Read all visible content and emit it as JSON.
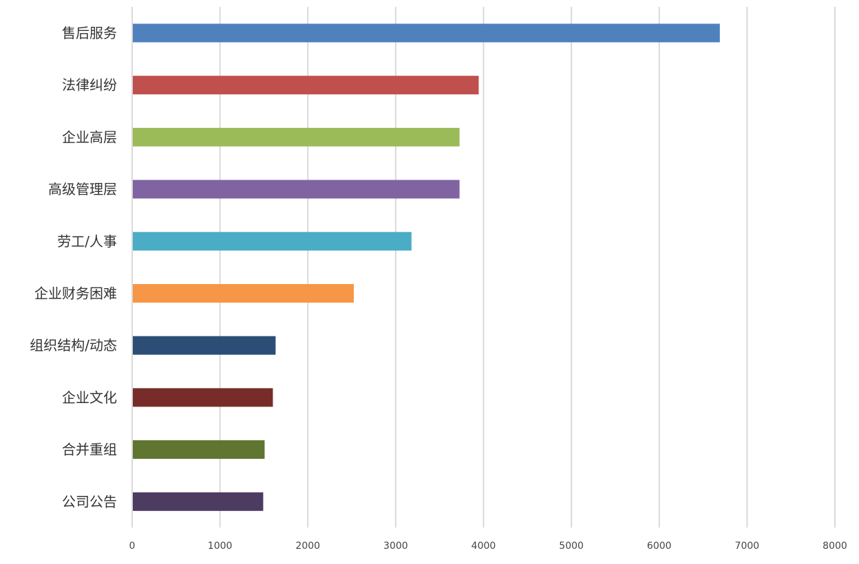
{
  "chart_data": {
    "type": "bar",
    "orientation": "horizontal",
    "title": "",
    "xlabel": "",
    "ylabel": "",
    "categories": [
      "售后服务",
      "法律纠纷",
      "企业高层",
      "高级管理层",
      "劳工/人事",
      "企业财务困难",
      "组织结构/动态",
      "企业文化",
      "合并重组",
      "公司公告"
    ],
    "values": [
      6690,
      3945,
      3727,
      3727,
      3180,
      2523,
      1633,
      1602,
      1508,
      1492
    ],
    "colors": [
      "#4f81bd",
      "#c0504d",
      "#9bbb59",
      "#8064a2",
      "#4bacc6",
      "#f79646",
      "#2c4d75",
      "#772c2a",
      "#5f7530",
      "#4d3b62"
    ],
    "xlim": [
      0,
      8000
    ],
    "xticks": [
      "0",
      "1000",
      "2000",
      "3000",
      "4000",
      "5000",
      "6000",
      "7000",
      "8000"
    ],
    "grid": true,
    "gridColor": "#d9d9d9"
  }
}
